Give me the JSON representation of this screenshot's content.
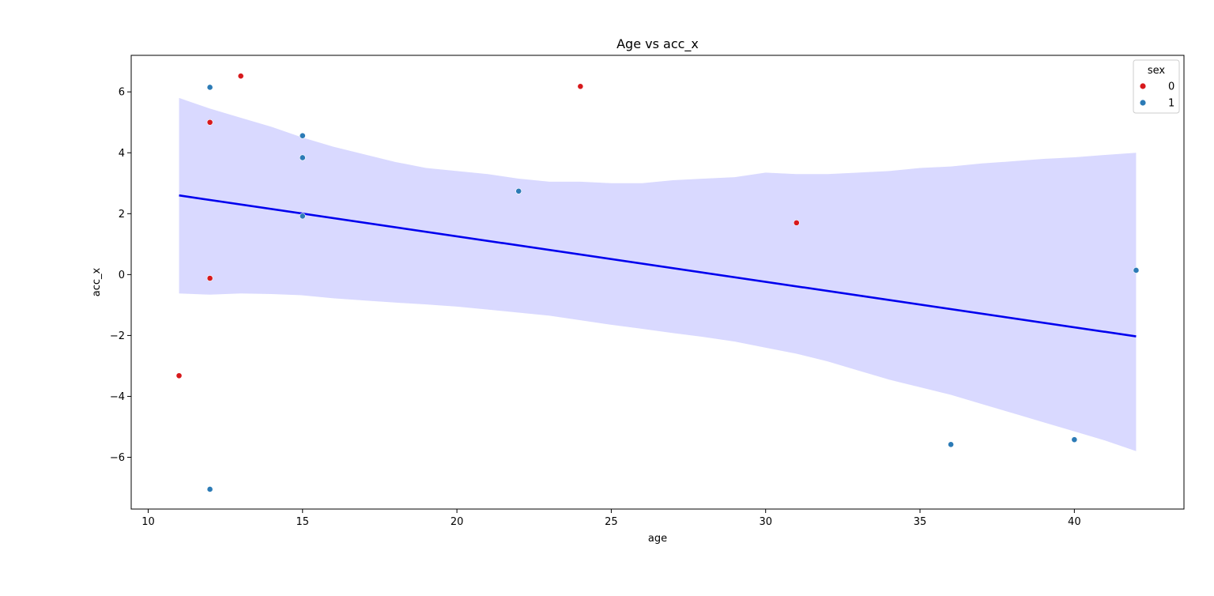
{
  "chart_data": {
    "type": "scatter",
    "title": "Age vs acc_x",
    "xlabel": "age",
    "ylabel": "acc_x",
    "xlim": [
      9.45,
      43.55
    ],
    "ylim": [
      -7.7,
      7.2
    ],
    "xticks": [
      10,
      15,
      20,
      25,
      30,
      35,
      40
    ],
    "yticks": [
      -6,
      -4,
      -2,
      0,
      2,
      4,
      6
    ],
    "xtick_labels": [
      "10",
      "15",
      "20",
      "25",
      "30",
      "35",
      "40"
    ],
    "ytick_labels": [
      "−6",
      "−4",
      "−2",
      "0",
      "2",
      "4",
      "6"
    ],
    "grid": false,
    "legend": {
      "title": "sex",
      "placement": "top-right",
      "entries": [
        {
          "label": "0",
          "color": "#d7191c"
        },
        {
          "label": "1",
          "color": "#2c7bb6"
        }
      ]
    },
    "series": [
      {
        "name": "0",
        "color": "#d7191c",
        "points": [
          {
            "x": 11,
            "y": -3.32
          },
          {
            "x": 12,
            "y": 5.0
          },
          {
            "x": 12,
            "y": -0.12
          },
          {
            "x": 13,
            "y": 6.52
          },
          {
            "x": 24,
            "y": 6.18
          },
          {
            "x": 31,
            "y": 1.7
          }
        ]
      },
      {
        "name": "1",
        "color": "#2c7bb6",
        "points": [
          {
            "x": 12,
            "y": 6.15
          },
          {
            "x": 12,
            "y": -7.05
          },
          {
            "x": 15,
            "y": 4.56
          },
          {
            "x": 15,
            "y": 3.84
          },
          {
            "x": 15,
            "y": 1.92
          },
          {
            "x": 22,
            "y": 2.74
          },
          {
            "x": 36,
            "y": -5.58
          },
          {
            "x": 40,
            "y": -5.42
          },
          {
            "x": 42,
            "y": 0.14
          }
        ]
      }
    ],
    "regression": {
      "color": "#0000ee",
      "band_color": "#d9d9ff",
      "line": [
        {
          "x": 11,
          "y": 2.6
        },
        {
          "x": 42,
          "y": -2.03
        }
      ],
      "band_upper": [
        {
          "x": 11,
          "y": 5.8
        },
        {
          "x": 12,
          "y": 5.45
        },
        {
          "x": 13,
          "y": 5.15
        },
        {
          "x": 14,
          "y": 4.85
        },
        {
          "x": 15,
          "y": 4.5
        },
        {
          "x": 16,
          "y": 4.2
        },
        {
          "x": 17,
          "y": 3.95
        },
        {
          "x": 18,
          "y": 3.7
        },
        {
          "x": 19,
          "y": 3.5
        },
        {
          "x": 20,
          "y": 3.4
        },
        {
          "x": 21,
          "y": 3.3
        },
        {
          "x": 22,
          "y": 3.15
        },
        {
          "x": 23,
          "y": 3.05
        },
        {
          "x": 24,
          "y": 3.05
        },
        {
          "x": 25,
          "y": 3.0
        },
        {
          "x": 26,
          "y": 3.0
        },
        {
          "x": 27,
          "y": 3.1
        },
        {
          "x": 28,
          "y": 3.15
        },
        {
          "x": 29,
          "y": 3.2
        },
        {
          "x": 30,
          "y": 3.35
        },
        {
          "x": 31,
          "y": 3.3
        },
        {
          "x": 32,
          "y": 3.3
        },
        {
          "x": 33,
          "y": 3.35
        },
        {
          "x": 34,
          "y": 3.4
        },
        {
          "x": 35,
          "y": 3.5
        },
        {
          "x": 36,
          "y": 3.55
        },
        {
          "x": 37,
          "y": 3.65
        },
        {
          "x": 38,
          "y": 3.72
        },
        {
          "x": 39,
          "y": 3.8
        },
        {
          "x": 40,
          "y": 3.85
        },
        {
          "x": 41,
          "y": 3.93
        },
        {
          "x": 42,
          "y": 4.0
        }
      ],
      "band_lower": [
        {
          "x": 11,
          "y": -0.62
        },
        {
          "x": 12,
          "y": -0.66
        },
        {
          "x": 13,
          "y": -0.62
        },
        {
          "x": 14,
          "y": -0.64
        },
        {
          "x": 15,
          "y": -0.68
        },
        {
          "x": 16,
          "y": -0.78
        },
        {
          "x": 17,
          "y": -0.85
        },
        {
          "x": 18,
          "y": -0.92
        },
        {
          "x": 19,
          "y": -0.98
        },
        {
          "x": 20,
          "y": -1.05
        },
        {
          "x": 21,
          "y": -1.15
        },
        {
          "x": 22,
          "y": -1.25
        },
        {
          "x": 23,
          "y": -1.35
        },
        {
          "x": 24,
          "y": -1.5
        },
        {
          "x": 25,
          "y": -1.65
        },
        {
          "x": 26,
          "y": -1.78
        },
        {
          "x": 27,
          "y": -1.92
        },
        {
          "x": 28,
          "y": -2.05
        },
        {
          "x": 29,
          "y": -2.2
        },
        {
          "x": 30,
          "y": -2.4
        },
        {
          "x": 31,
          "y": -2.6
        },
        {
          "x": 32,
          "y": -2.85
        },
        {
          "x": 33,
          "y": -3.15
        },
        {
          "x": 34,
          "y": -3.45
        },
        {
          "x": 35,
          "y": -3.7
        },
        {
          "x": 36,
          "y": -3.95
        },
        {
          "x": 37,
          "y": -4.25
        },
        {
          "x": 38,
          "y": -4.55
        },
        {
          "x": 39,
          "y": -4.85
        },
        {
          "x": 40,
          "y": -5.15
        },
        {
          "x": 41,
          "y": -5.45
        },
        {
          "x": 42,
          "y": -5.8
        }
      ]
    }
  }
}
